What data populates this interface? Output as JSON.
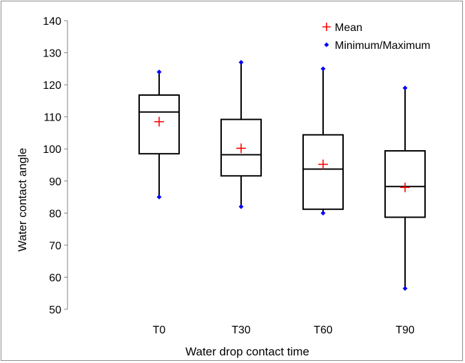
{
  "chart_data": {
    "type": "box",
    "title": "",
    "xlabel": "Water drop contact time",
    "ylabel": "Water contact angle",
    "ylim": [
      50,
      140
    ],
    "yticks": [
      50,
      60,
      70,
      80,
      90,
      100,
      110,
      120,
      130,
      140
    ],
    "grid": false,
    "legend_position": "top-right",
    "legend": [
      {
        "label": "Mean",
        "marker": "plus",
        "color": "#ff0000"
      },
      {
        "label": "Minimum/Maximum",
        "marker": "diamond",
        "color": "#0000ff"
      }
    ],
    "categories": [
      "T0",
      "T30",
      "T60",
      "T90"
    ],
    "boxes": [
      {
        "category": "T0",
        "min": 85,
        "q1": 98.5,
        "median": 111.5,
        "q3": 116.8,
        "max": 124,
        "mean": 108.5
      },
      {
        "category": "T30",
        "min": 82,
        "q1": 91.6,
        "median": 98.2,
        "q3": 109.2,
        "max": 127,
        "mean": 100.2
      },
      {
        "category": "T60",
        "min": 80,
        "q1": 81.2,
        "median": 93.7,
        "q3": 104.4,
        "max": 125,
        "mean": 95.2
      },
      {
        "category": "T90",
        "min": 56.5,
        "q1": 78.7,
        "median": 88.3,
        "q3": 99.4,
        "max": 119,
        "mean": 88
      }
    ],
    "colors": {
      "box": "#000000",
      "mean": "#ff0000",
      "minmax": "#0000ff"
    }
  }
}
